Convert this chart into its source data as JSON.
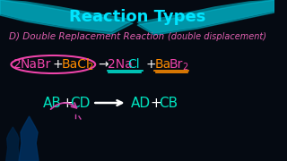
{
  "bg_color": "#050a12",
  "title": "Reaction Types",
  "title_color": "#00e5ff",
  "title_fontsize": 13,
  "subtitle": "D) Double Replacement Reaction",
  "subtitle_color": "#e060b0",
  "subtitle_fontsize": 7.5,
  "paren_note": "(double displacement)",
  "paren_color": "#e060b0",
  "paren_fontsize": 7,
  "eq1_color_pink": "#ee44aa",
  "eq1_color_orange": "#ff8c00",
  "eq1_color_teal": "#00e5d4",
  "eq2_color_teal": "#00e5c0",
  "eq2_color_pink": "#cc44aa",
  "wave_dark": "#007a8a",
  "wave_light": "#00bcd4"
}
